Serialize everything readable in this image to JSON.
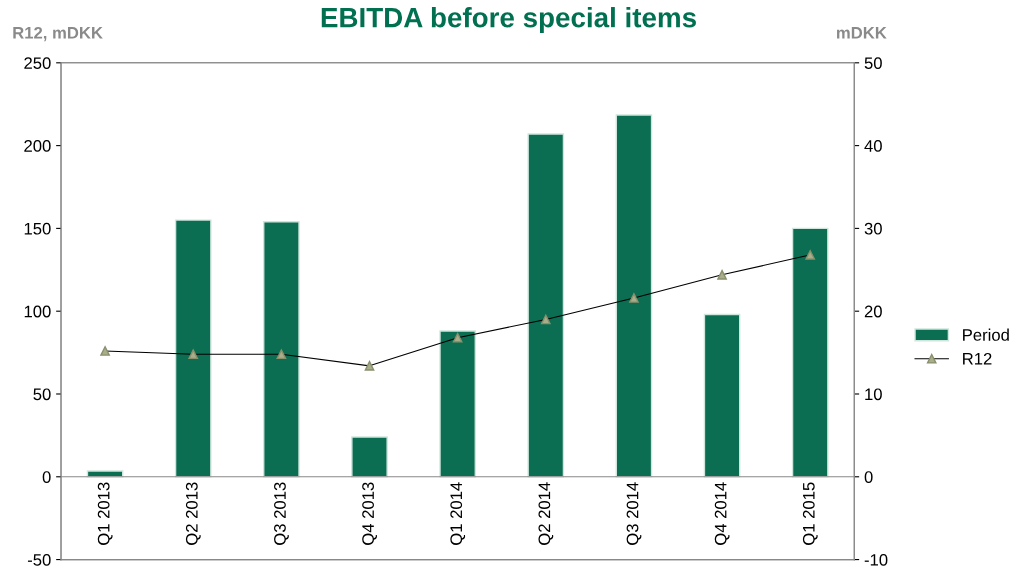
{
  "chart_data": {
    "type": "bar",
    "title": "EBITDA before special items",
    "ylabel": "R12, mDKK",
    "y2label": "mDKK",
    "categories": [
      "Q1 2013",
      "Q2 2013",
      "Q3 2013",
      "Q4 2013",
      "Q1 2014",
      "Q2 2014",
      "Q3 2014",
      "Q4 2014",
      "Q1 2015"
    ],
    "series": [
      {
        "name": "Period",
        "axis": "y2",
        "color": "#0b6e52",
        "values": [
          0.7,
          31.0,
          30.8,
          4.8,
          17.6,
          41.4,
          43.7,
          19.6,
          30.0
        ]
      },
      {
        "name": "R12",
        "type": "line",
        "axis": "y",
        "color": "#000000",
        "marker": "triangle",
        "values": [
          76,
          74,
          74,
          67,
          84,
          95,
          108,
          122,
          134
        ]
      }
    ],
    "ylim": [
      -50,
      250
    ],
    "yticks": [
      -50,
      0,
      50,
      100,
      150,
      200,
      250
    ],
    "y2lim": [
      -10,
      50
    ],
    "y2ticks": [
      -10,
      0,
      10,
      20,
      30,
      40,
      50
    ],
    "grid": false,
    "legend": "right"
  }
}
